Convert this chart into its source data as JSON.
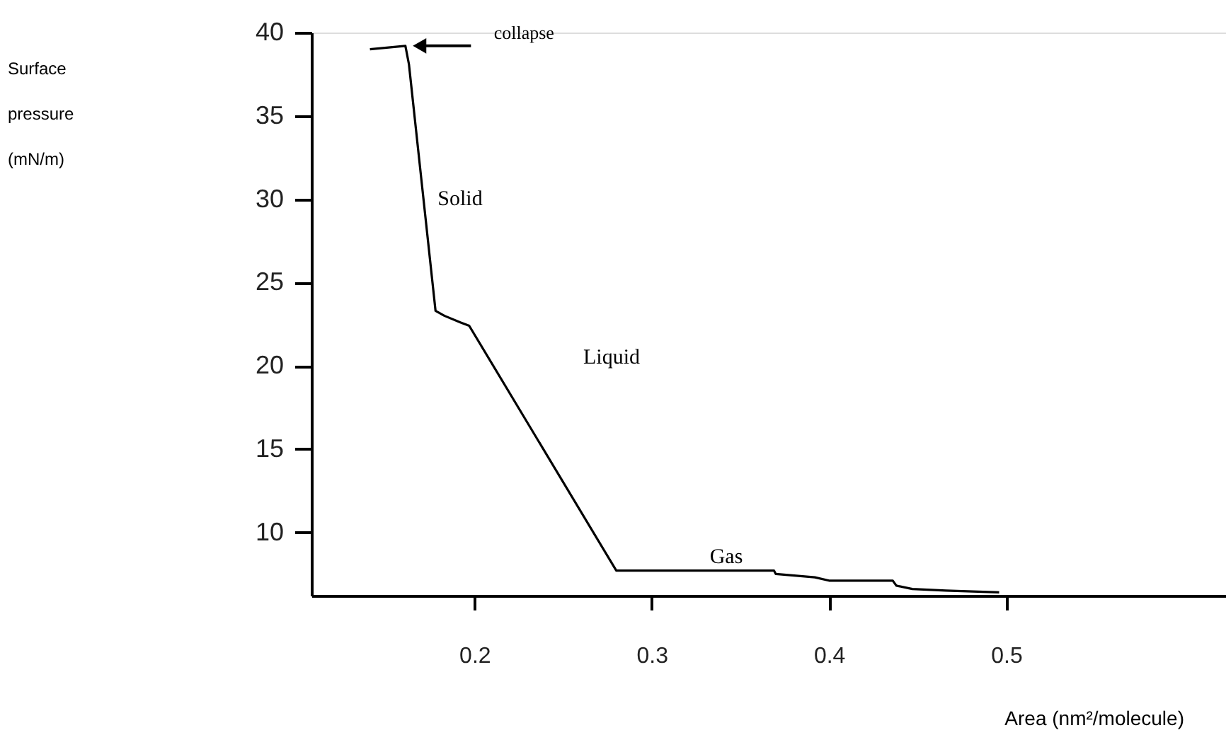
{
  "chart_data": {
    "type": "line",
    "xlabel": "Area (nm²/molecule)",
    "ylabel": "Surface pressure (mN/m)",
    "series": [
      {
        "color": "#000000",
        "x": [
          0.141,
          0.161,
          0.163,
          0.178,
          0.183,
          0.192,
          0.197,
          0.28,
          0.369,
          0.37,
          0.392,
          0.4,
          0.436,
          0.438,
          0.447,
          0.466,
          0.496
        ],
        "values": [
          39.0,
          39.2,
          38.1,
          23.3,
          23.0,
          22.6,
          22.4,
          7.7,
          7.7,
          7.5,
          7.3,
          7.1,
          7.1,
          6.8,
          6.6,
          6.5,
          6.4
        ]
      }
    ],
    "xlim": [
      0.108,
      0.624
    ],
    "xticks": [
      0.2,
      0.3,
      0.4,
      0.5
    ],
    "ylim": [
      6.2,
      40
    ],
    "yticks": [
      10,
      15,
      20,
      25,
      30,
      35,
      40
    ],
    "annotations": [
      {
        "text": "collapse",
        "x": 0.163,
        "y": 39.2
      },
      "Solid",
      "Liquid",
      "Gas"
    ],
    "grid": false,
    "marker": "none",
    "line_style": "solid"
  }
}
